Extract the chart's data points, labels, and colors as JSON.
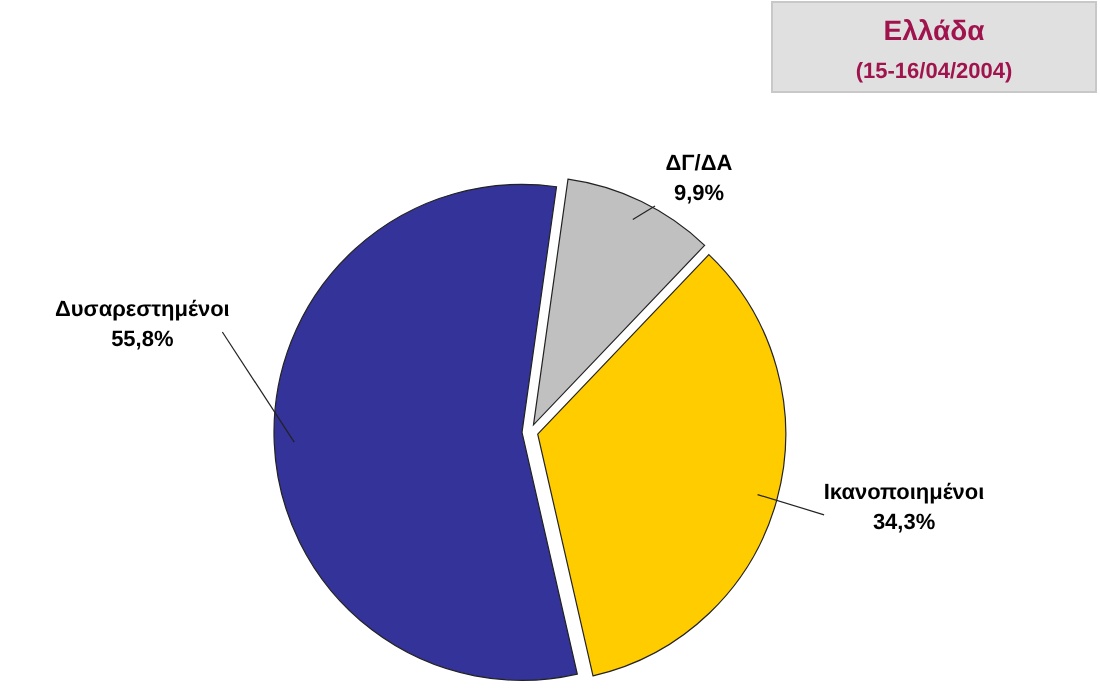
{
  "chart_data": {
    "type": "pie",
    "title": "Ελλάδα",
    "subtitle": "(15-16/04/2004)",
    "categories": [
      "ΔΓ/ΔΑ",
      "Ικανοποιημένοι",
      "Δυσαρεστημένοι"
    ],
    "values": [
      9.9,
      34.3,
      55.8
    ],
    "value_labels": [
      "9,9%",
      "34,3%",
      "55,8%"
    ],
    "colors": [
      "#c0c0c0",
      "#ffcc00",
      "#333399"
    ]
  }
}
